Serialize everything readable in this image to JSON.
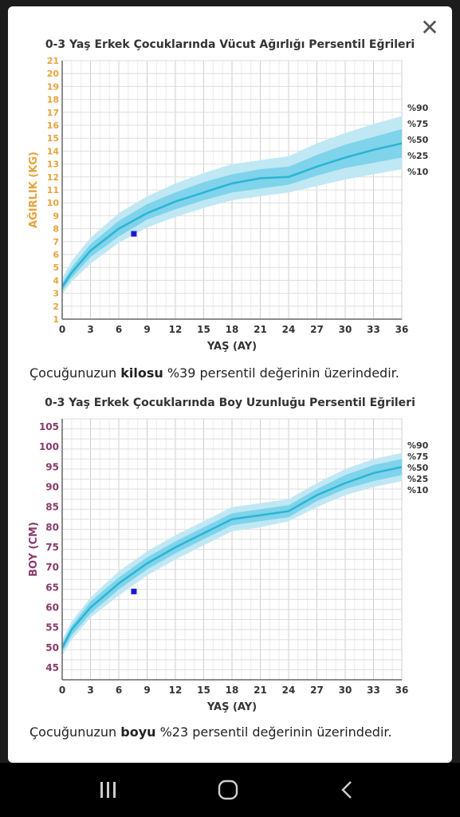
{
  "dialog": {
    "close_label": "✕"
  },
  "charts": [
    {
      "title": "0-3 Yaş Erkek Çocuklarında Vücut Ağırlığı Persentil Eğrileri",
      "caption_pre": "Çocuğunuzun ",
      "caption_bold": "kilosu",
      "caption_post": " %39 persentil değerinin üzerindedir."
    },
    {
      "title": "0-3 Yaş Erkek Çocuklarında Boy Uzunluğu Persentil Eğrileri",
      "caption_pre": "Çocuğunuzun ",
      "caption_bold": "boyu",
      "caption_post": " %23 persentil değerinin üzerindedir."
    }
  ],
  "chart_data": [
    {
      "type": "area",
      "title": "0-3 Yaş Erkek Çocuklarında Vücut Ağırlığı Persentil Eğrileri",
      "xlabel": "YAŞ (AY)",
      "ylabel": "AĞIRLIK (KG)",
      "xlim": [
        0,
        36
      ],
      "ylim": [
        1,
        21
      ],
      "xticks": [
        0,
        3,
        6,
        9,
        12,
        15,
        18,
        21,
        24,
        27,
        30,
        33,
        36
      ],
      "yticks": [
        1,
        2,
        3,
        4,
        5,
        6,
        7,
        8,
        9,
        10,
        11,
        12,
        13,
        14,
        15,
        16,
        17,
        18,
        19,
        20,
        21
      ],
      "x": [
        0,
        1,
        3,
        6,
        9,
        12,
        15,
        18,
        21,
        24,
        27,
        30,
        33,
        36
      ],
      "series": [
        {
          "name": "%10",
          "values": [
            2.9,
            3.9,
            5.3,
            6.9,
            8.1,
            8.9,
            9.6,
            10.2,
            10.5,
            10.8,
            11.3,
            11.8,
            12.2,
            12.6
          ]
        },
        {
          "name": "%25",
          "values": [
            3.2,
            4.2,
            5.8,
            7.4,
            8.7,
            9.5,
            10.2,
            10.8,
            11.1,
            11.4,
            12.1,
            12.7,
            13.1,
            13.5
          ]
        },
        {
          "name": "%50",
          "values": [
            3.5,
            4.6,
            6.3,
            8.0,
            9.2,
            10.1,
            10.8,
            11.5,
            11.9,
            12.0,
            12.8,
            13.5,
            14.1,
            14.6
          ]
        },
        {
          "name": "%75",
          "values": [
            3.8,
            5.0,
            6.8,
            8.6,
            9.9,
            10.8,
            11.6,
            12.2,
            12.6,
            12.8,
            13.7,
            14.5,
            15.1,
            15.7
          ]
        },
        {
          "name": "%90",
          "values": [
            4.2,
            5.5,
            7.3,
            9.2,
            10.5,
            11.5,
            12.3,
            13.0,
            13.3,
            13.6,
            14.6,
            15.4,
            16.1,
            16.7
          ]
        }
      ],
      "point": {
        "x": 7.6,
        "y": 7.6
      },
      "colors": {
        "axis_label": "#e8a33a",
        "band_outer": "#bfe8f4",
        "band_inner": "#7fd3ea",
        "median": "#2ab5d4",
        "point": "#1a1ad6"
      }
    },
    {
      "type": "area",
      "title": "0-3 Yaş Erkek Çocuklarında Boy Uzunluğu Persentil Eğrileri",
      "xlabel": "YAŞ (AY)",
      "ylabel": "BOY (CM)",
      "xlim": [
        0,
        36
      ],
      "ylim": [
        42,
        107
      ],
      "xticks": [
        0,
        3,
        6,
        9,
        12,
        15,
        18,
        21,
        24,
        27,
        30,
        33,
        36
      ],
      "yticks": [
        45,
        50,
        55,
        60,
        65,
        70,
        75,
        80,
        85,
        90,
        95,
        100,
        105
      ],
      "x": [
        0,
        1,
        3,
        6,
        9,
        12,
        15,
        18,
        21,
        24,
        27,
        30,
        33,
        36
      ],
      "series": [
        {
          "name": "%10",
          "values": [
            48,
            52,
            57.5,
            63,
            68,
            72,
            75.5,
            79,
            80,
            81.5,
            85,
            88,
            90,
            91.5
          ]
        },
        {
          "name": "%25",
          "values": [
            49,
            53,
            58.5,
            64.5,
            69.5,
            73.5,
            77,
            80.5,
            81.5,
            82.5,
            86.5,
            89.5,
            91.5,
            93
          ]
        },
        {
          "name": "%50",
          "values": [
            50,
            54.5,
            60,
            66,
            71,
            75,
            78.5,
            82,
            83,
            84,
            88,
            91,
            93.5,
            95
          ]
        },
        {
          "name": "%75",
          "values": [
            51,
            55.5,
            61.5,
            67.5,
            72.5,
            76.5,
            80,
            83.5,
            84.5,
            85.5,
            89.5,
            93,
            95.5,
            97
          ]
        },
        {
          "name": "%90",
          "values": [
            52,
            56.5,
            62.5,
            69,
            74,
            78,
            81.5,
            85,
            86,
            87,
            91,
            94.5,
            97,
            98.5
          ]
        }
      ],
      "point": {
        "x": 7.6,
        "y": 64
      },
      "colors": {
        "axis_label": "#8a3a6a",
        "band_outer": "#bfe8f4",
        "band_inner": "#7fd3ea",
        "median": "#2ab5d4",
        "point": "#1a1ad6"
      }
    }
  ],
  "navbar": {
    "recent_icon": "recent-apps-icon",
    "home_icon": "home-icon",
    "back_icon": "back-icon"
  }
}
